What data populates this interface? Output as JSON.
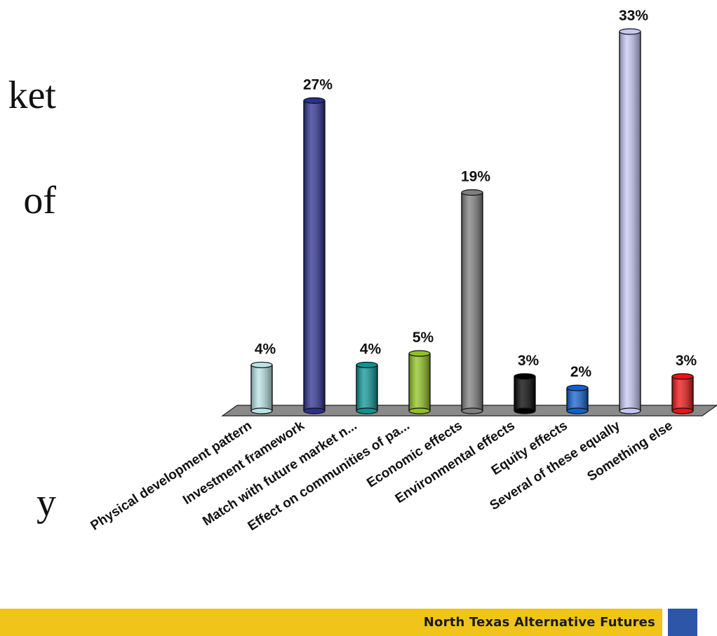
{
  "slide": {
    "fragments": [
      "ket",
      "of",
      "y"
    ]
  },
  "footer": {
    "text": "North Texas Alternative Futures",
    "bar_color": "#f0c419",
    "block_color": "#2e56a8"
  },
  "chart_data": {
    "type": "bar",
    "categories": [
      "Physical development pattern",
      "Investment framework",
      "Match with future market n...",
      "Effect on communities of pa...",
      "Economic effects",
      "Environmental effects",
      "Equity effects",
      "Several of these equally",
      "Something else"
    ],
    "values": [
      4,
      27,
      4,
      5,
      19,
      3,
      2,
      33,
      3
    ],
    "value_labels": [
      "4%",
      "27%",
      "4%",
      "5%",
      "19%",
      "3%",
      "2%",
      "33%",
      "3%"
    ],
    "colors": [
      "#b9e3e6",
      "#2b2f8f",
      "#0c9494",
      "#8fc31f",
      "#7f7f7f",
      "#000000",
      "#1060d0",
      "#c6c6f5",
      "#ee1111"
    ],
    "title": "",
    "xlabel": "",
    "ylabel": "",
    "ylim": [
      0,
      33
    ],
    "grid": false,
    "legend": "none",
    "style": "3d-cylinder"
  }
}
